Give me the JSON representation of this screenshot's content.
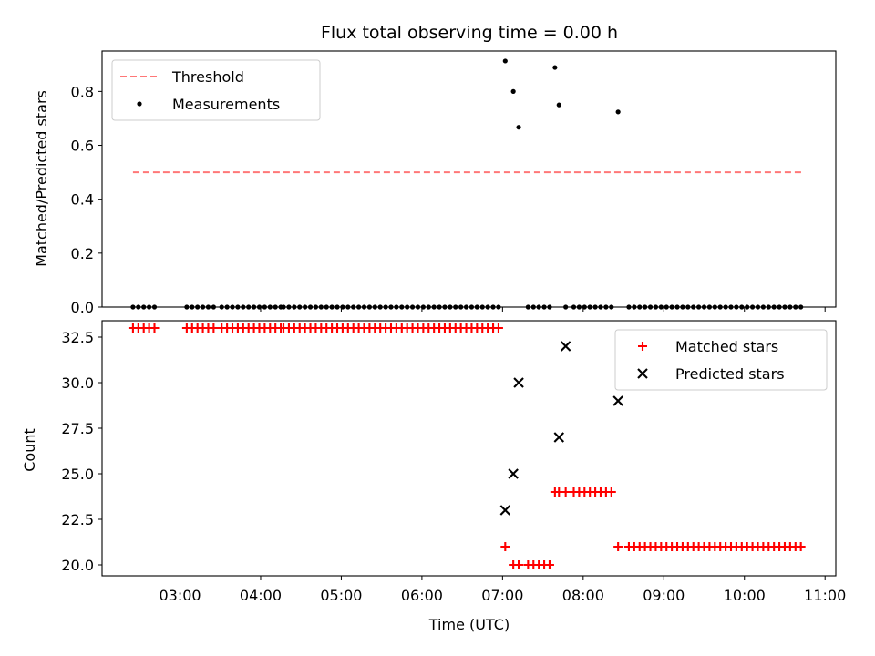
{
  "chart_data": [
    {
      "type": "scatter",
      "title": "Flux total observing time = 0.00 h",
      "xlabel": "",
      "ylabel": "Matched/Predicted stars",
      "xlim": [
        "02:02",
        "11:08"
      ],
      "ylim": [
        0,
        0.95
      ],
      "yticks": [
        0.0,
        0.2,
        0.4,
        0.6,
        0.8
      ],
      "ytick_labels": [
        "0.0",
        "0.2",
        "0.4",
        "0.6",
        "0.8"
      ],
      "legend_position": "upper-left",
      "threshold": {
        "name": "Threshold",
        "y": 0.5,
        "x_start": "02:25",
        "x_end": "10:43",
        "color": "#ff7777",
        "style": "dashed"
      },
      "series": [
        {
          "name": "Measurements",
          "marker": "dot",
          "color": "#000000",
          "x": [
            "02:25",
            "02:29",
            "02:33",
            "02:37",
            "02:41",
            "03:05",
            "03:09",
            "03:13",
            "03:17",
            "03:21",
            "03:25",
            "03:31",
            "03:35",
            "03:39",
            "03:43",
            "03:47",
            "03:51",
            "03:55",
            "03:59",
            "04:03",
            "04:07",
            "04:11",
            "04:15",
            "04:17",
            "04:21",
            "04:25",
            "04:29",
            "04:33",
            "04:37",
            "04:41",
            "04:45",
            "04:49",
            "04:53",
            "04:57",
            "05:01",
            "05:05",
            "05:09",
            "05:13",
            "05:17",
            "05:21",
            "05:25",
            "05:29",
            "05:33",
            "05:37",
            "05:41",
            "05:45",
            "05:49",
            "05:53",
            "05:57",
            "06:01",
            "06:05",
            "06:09",
            "06:13",
            "06:17",
            "06:21",
            "06:25",
            "06:29",
            "06:33",
            "06:37",
            "06:41",
            "06:45",
            "06:49",
            "06:53",
            "06:57",
            "07:02",
            "07:08",
            "07:12",
            "07:19",
            "07:23",
            "07:27",
            "07:31",
            "07:35",
            "07:39",
            "07:42",
            "07:47",
            "07:53",
            "07:57",
            "08:01",
            "08:05",
            "08:09",
            "08:13",
            "08:17",
            "08:21",
            "08:26",
            "08:34",
            "08:38",
            "08:42",
            "08:46",
            "08:50",
            "08:54",
            "08:58",
            "09:02",
            "09:06",
            "09:10",
            "09:14",
            "09:18",
            "09:22",
            "09:26",
            "09:30",
            "09:34",
            "09:38",
            "09:42",
            "09:46",
            "09:50",
            "09:54",
            "09:58",
            "10:02",
            "10:06",
            "10:10",
            "10:14",
            "10:18",
            "10:22",
            "10:26",
            "10:30",
            "10:34",
            "10:38",
            "10:42"
          ],
          "y": [
            0,
            0,
            0,
            0,
            0,
            0,
            0,
            0,
            0,
            0,
            0,
            0,
            0,
            0,
            0,
            0,
            0,
            0,
            0,
            0,
            0,
            0,
            0,
            0,
            0,
            0,
            0,
            0,
            0,
            0,
            0,
            0,
            0,
            0,
            0,
            0,
            0,
            0,
            0,
            0,
            0,
            0,
            0,
            0,
            0,
            0,
            0,
            0,
            0,
            0,
            0,
            0,
            0,
            0,
            0,
            0,
            0,
            0,
            0,
            0,
            0,
            0,
            0,
            0,
            0.913,
            0.8,
            0.667,
            0,
            0,
            0,
            0,
            0,
            0.889,
            0.75,
            0,
            0,
            0,
            0,
            0,
            0,
            0,
            0,
            0,
            0.724,
            0,
            0,
            0,
            0,
            0,
            0,
            0,
            0,
            0,
            0,
            0,
            0,
            0,
            0,
            0,
            0,
            0,
            0,
            0,
            0,
            0,
            0,
            0,
            0,
            0,
            0,
            0,
            0,
            0,
            0,
            0,
            0,
            0
          ]
        }
      ]
    },
    {
      "type": "scatter",
      "title": "",
      "xlabel": "Time (UTC)",
      "ylabel": "Count",
      "xlim": [
        "02:02",
        "11:08"
      ],
      "ylim": [
        19.4,
        33.4
      ],
      "xticks": [
        "03:00",
        "04:00",
        "05:00",
        "06:00",
        "07:00",
        "08:00",
        "09:00",
        "10:00",
        "11:00"
      ],
      "yticks": [
        20.0,
        22.5,
        25.0,
        27.5,
        30.0,
        32.5
      ],
      "ytick_labels": [
        "20.0",
        "22.5",
        "25.0",
        "27.5",
        "30.0",
        "32.5"
      ],
      "legend_position": "upper-right",
      "series": [
        {
          "name": "Matched stars",
          "marker": "plus",
          "color": "#ff0000",
          "x": [
            "02:25",
            "02:29",
            "02:33",
            "02:37",
            "02:41",
            "03:05",
            "03:09",
            "03:13",
            "03:17",
            "03:21",
            "03:25",
            "03:31",
            "03:35",
            "03:39",
            "03:43",
            "03:47",
            "03:51",
            "03:55",
            "03:59",
            "04:03",
            "04:07",
            "04:11",
            "04:15",
            "04:17",
            "04:21",
            "04:25",
            "04:29",
            "04:33",
            "04:37",
            "04:41",
            "04:45",
            "04:49",
            "04:53",
            "04:57",
            "05:01",
            "05:05",
            "05:09",
            "05:13",
            "05:17",
            "05:21",
            "05:25",
            "05:29",
            "05:33",
            "05:37",
            "05:41",
            "05:45",
            "05:49",
            "05:53",
            "05:57",
            "06:01",
            "06:05",
            "06:09",
            "06:13",
            "06:17",
            "06:21",
            "06:25",
            "06:29",
            "06:33",
            "06:37",
            "06:41",
            "06:45",
            "06:49",
            "06:53",
            "06:57",
            "07:02",
            "07:08",
            "07:12",
            "07:19",
            "07:23",
            "07:27",
            "07:31",
            "07:35",
            "07:39",
            "07:42",
            "07:47",
            "07:53",
            "07:57",
            "08:01",
            "08:05",
            "08:09",
            "08:13",
            "08:17",
            "08:21",
            "08:26",
            "08:34",
            "08:38",
            "08:42",
            "08:46",
            "08:50",
            "08:54",
            "08:58",
            "09:02",
            "09:06",
            "09:10",
            "09:14",
            "09:18",
            "09:22",
            "09:26",
            "09:30",
            "09:34",
            "09:38",
            "09:42",
            "09:46",
            "09:50",
            "09:54",
            "09:58",
            "10:02",
            "10:06",
            "10:10",
            "10:14",
            "10:18",
            "10:22",
            "10:26",
            "10:30",
            "10:34",
            "10:38",
            "10:42"
          ],
          "y": [
            33,
            33,
            33,
            33,
            33,
            33,
            33,
            33,
            33,
            33,
            33,
            33,
            33,
            33,
            33,
            33,
            33,
            33,
            33,
            33,
            33,
            33,
            33,
            33,
            33,
            33,
            33,
            33,
            33,
            33,
            33,
            33,
            33,
            33,
            33,
            33,
            33,
            33,
            33,
            33,
            33,
            33,
            33,
            33,
            33,
            33,
            33,
            33,
            33,
            33,
            33,
            33,
            33,
            33,
            33,
            33,
            33,
            33,
            33,
            33,
            33,
            33,
            33,
            33,
            21,
            20,
            20,
            20,
            20,
            20,
            20,
            20,
            24,
            24,
            24,
            24,
            24,
            24,
            24,
            24,
            24,
            24,
            24,
            21,
            21,
            21,
            21,
            21,
            21,
            21,
            21,
            21,
            21,
            21,
            21,
            21,
            21,
            21,
            21,
            21,
            21,
            21,
            21,
            21,
            21,
            21,
            21,
            21,
            21,
            21,
            21,
            21,
            21,
            21,
            21,
            21,
            21
          ]
        },
        {
          "name": "Predicted stars",
          "marker": "x",
          "color": "#000000",
          "x": [
            "07:02",
            "07:08",
            "07:12",
            "07:42",
            "07:47",
            "08:26"
          ],
          "y": [
            23,
            25,
            30,
            27,
            32,
            29
          ]
        }
      ]
    }
  ]
}
